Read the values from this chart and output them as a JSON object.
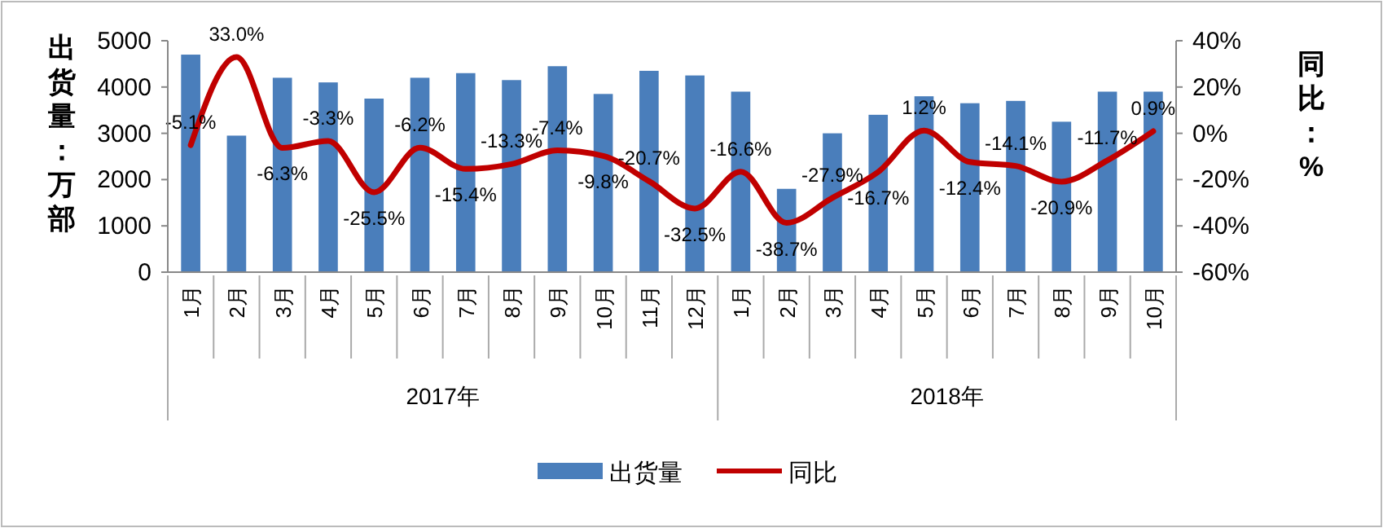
{
  "chart_data": {
    "type": "bar",
    "ylabel": "出货量：万部",
    "y2label": "同比：%",
    "categories": [
      "1月",
      "2月",
      "3月",
      "4月",
      "5月",
      "6月",
      "7月",
      "8月",
      "9月",
      "10月",
      "11月",
      "12月",
      "1月",
      "2月",
      "3月",
      "4月",
      "5月",
      "6月",
      "7月",
      "8月",
      "9月",
      "10月"
    ],
    "annotations": [
      "2017年",
      "2018年"
    ],
    "series": [
      {
        "name": "出货量",
        "color": "#4a7ebb",
        "values": [
          4700,
          2950,
          4200,
          4100,
          3750,
          4200,
          4300,
          4150,
          4450,
          3850,
          4350,
          4250,
          3900,
          1800,
          3000,
          3400,
          3800,
          3650,
          3700,
          3250,
          3900,
          3900
        ]
      },
      {
        "name": "同比",
        "type": "line",
        "axis": "y2",
        "color": "#c00000",
        "data_labels": true,
        "value_labels": [
          "-5.1%",
          "33.0%",
          "-6.3%",
          "-3.3%",
          "-25.5%",
          "-6.2%",
          "-15.4%",
          "-13.3%",
          "-7.4%",
          "-9.8%",
          "-20.7%",
          "-32.5%",
          "-16.6%",
          "-38.7%",
          "-27.9%",
          "-16.7%",
          "1.2%",
          "-12.4%",
          "-14.1%",
          "-20.9%",
          "-11.7%",
          "0.9%"
        ],
        "values": [
          -5.1,
          33.0,
          -6.3,
          -3.3,
          -25.5,
          -6.2,
          -15.4,
          -13.3,
          -7.4,
          -9.8,
          -20.7,
          -32.5,
          -16.6,
          -38.7,
          -27.9,
          -16.7,
          1.2,
          -12.4,
          -14.1,
          -20.9,
          -11.7,
          0.9
        ]
      }
    ],
    "ylim": [
      0,
      5000
    ],
    "yticks": [
      0,
      1000,
      2000,
      3000,
      4000,
      5000
    ],
    "y2lim": [
      -60,
      40
    ],
    "y2ticks": [
      {
        "value": -60,
        "label": "-60%"
      },
      {
        "value": -40,
        "label": "-40%"
      },
      {
        "value": -20,
        "label": "-20%"
      },
      {
        "value": 0,
        "label": "0%"
      },
      {
        "value": 20,
        "label": "20%"
      },
      {
        "value": 40,
        "label": "40%"
      }
    ],
    "grid": false,
    "legend": "bottom",
    "marker": "none",
    "line_style": "solid"
  }
}
